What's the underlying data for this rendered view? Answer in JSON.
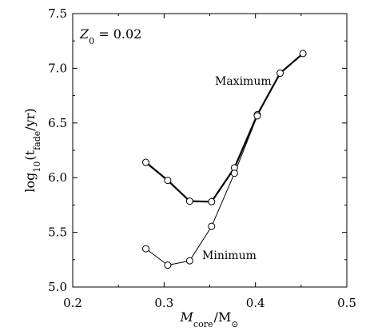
{
  "chart_data": {
    "type": "line",
    "xlim": [
      0.2,
      0.5
    ],
    "ylim": [
      5.0,
      7.5
    ],
    "xticks": [
      0.2,
      0.3,
      0.4,
      0.5
    ],
    "xtick_labels": [
      "0.2",
      "0.3",
      "0.4",
      "0.5"
    ],
    "yticks": [
      5.0,
      5.5,
      6.0,
      6.5,
      7.0,
      7.5
    ],
    "ytick_labels": [
      "5.0",
      "5.5",
      "6.0",
      "6.5",
      "7.0",
      "7.5"
    ],
    "xlabel": {
      "main": "M",
      "sub": "core",
      "rest": "/M",
      "sub2": "⊙"
    },
    "ylabel": {
      "pre": "log",
      "sub": "10",
      "open": "(t",
      "sub2": "fade",
      "close": "/yr)"
    },
    "annotation": {
      "lhs": "Z",
      "sub": "0",
      "rhs": " = 0.02"
    },
    "grid": false,
    "series": [
      {
        "name": "Maximum",
        "style": "thick",
        "points": [
          [
            0.28,
            6.14
          ],
          [
            0.304,
            5.975
          ],
          [
            0.328,
            5.785
          ],
          [
            0.352,
            5.78
          ],
          [
            0.377,
            6.09
          ],
          [
            0.402,
            6.575
          ],
          [
            0.427,
            6.955
          ],
          [
            0.452,
            7.135
          ]
        ]
      },
      {
        "name": "Minimum",
        "style": "thin",
        "points": [
          [
            0.28,
            5.35
          ],
          [
            0.304,
            5.2
          ],
          [
            0.328,
            5.24
          ],
          [
            0.352,
            5.555
          ],
          [
            0.377,
            6.04
          ],
          [
            0.402,
            6.565
          ]
        ]
      }
    ],
    "series_labels": [
      "Maximum",
      "Minimum"
    ]
  }
}
